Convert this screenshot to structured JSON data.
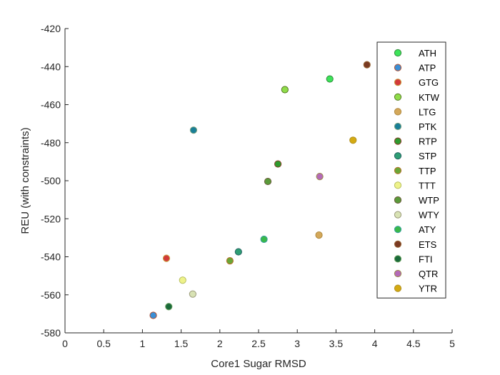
{
  "chart_data": {
    "type": "scatter",
    "title": "",
    "xlabel": "Core1 Sugar RMSD",
    "ylabel": "REU (with constraints)",
    "xlim": [
      0,
      5
    ],
    "ylim": [
      -580,
      -420
    ],
    "xticks": [
      0,
      0.5,
      1,
      1.5,
      2,
      2.5,
      3,
      3.5,
      4,
      4.5,
      5
    ],
    "xtick_labels": [
      "0",
      "0.5",
      "1",
      "1.5",
      "2",
      "2.5",
      "3",
      "3.5",
      "4",
      "4.5",
      "5"
    ],
    "yticks": [
      -580,
      -560,
      -540,
      -520,
      -500,
      -480,
      -460,
      -440,
      -420
    ],
    "ytick_labels": [
      "-580",
      "-560",
      "-540",
      "-520",
      "-500",
      "-480",
      "-460",
      "-440",
      "-420"
    ],
    "grid": false,
    "legend_position": "top-right",
    "series": [
      {
        "name": "ATH",
        "x": [
          3.42
        ],
        "y": [
          -446.5
        ],
        "color": "#3de35a",
        "edge": "#2f8a3a"
      },
      {
        "name": "ATP",
        "x": [
          1.14
        ],
        "y": [
          -570.8
        ],
        "color": "#3a8fd6",
        "edge": "#b05030"
      },
      {
        "name": "GTG",
        "x": [
          1.31
        ],
        "y": [
          -540.8
        ],
        "color": "#d23a3a",
        "edge": "#c8a040"
      },
      {
        "name": "KTW",
        "x": [
          2.84
        ],
        "y": [
          -452.1
        ],
        "color": "#8fdc4a",
        "edge": "#557a22"
      },
      {
        "name": "LTG",
        "x": [
          3.28
        ],
        "y": [
          -528.6
        ],
        "color": "#d4a85a",
        "edge": "#b08a40"
      },
      {
        "name": "PTK",
        "x": [
          1.66
        ],
        "y": [
          -473.4
        ],
        "color": "#197f97",
        "edge": "#7aa080"
      },
      {
        "name": "RTP",
        "x": [
          2.75
        ],
        "y": [
          -491.2
        ],
        "color": "#2e9a2e",
        "edge": "#8a3a28"
      },
      {
        "name": "STP",
        "x": [
          2.24
        ],
        "y": [
          -537.4
        ],
        "color": "#2e9e74",
        "edge": "#246060"
      },
      {
        "name": "TTP",
        "x": [
          2.13
        ],
        "y": [
          -542.1
        ],
        "color": "#6aa636",
        "edge": "#b8702a"
      },
      {
        "name": "TTT",
        "x": [
          1.52
        ],
        "y": [
          -552.3
        ],
        "color": "#eef28a",
        "edge": "#b8c060"
      },
      {
        "name": "WTP",
        "x": [
          2.62
        ],
        "y": [
          -500.4
        ],
        "color": "#5a9a3a",
        "edge": "#6a5a3a"
      },
      {
        "name": "WTY",
        "x": [
          1.65
        ],
        "y": [
          -559.6
        ],
        "color": "#d8e2b4",
        "edge": "#9a9a7a"
      },
      {
        "name": "ATY",
        "x": [
          2.57
        ],
        "y": [
          -530.8
        ],
        "color": "#3ab84a",
        "edge": "#3aa0a0"
      },
      {
        "name": "ETS",
        "x": [
          3.9
        ],
        "y": [
          -439.0
        ],
        "color": "#7a3a22",
        "edge": "#9a6a3a"
      },
      {
        "name": "FTI",
        "x": [
          1.34
        ],
        "y": [
          -566.2
        ],
        "color": "#1a6a3a",
        "edge": "#6aa060"
      },
      {
        "name": "QTR",
        "x": [
          3.29
        ],
        "y": [
          -497.8
        ],
        "color": "#b46ab8",
        "edge": "#9a8a4a"
      },
      {
        "name": "YTR",
        "x": [
          3.72
        ],
        "y": [
          -478.7
        ],
        "color": "#d4aa12",
        "edge": "#b09020"
      }
    ]
  }
}
